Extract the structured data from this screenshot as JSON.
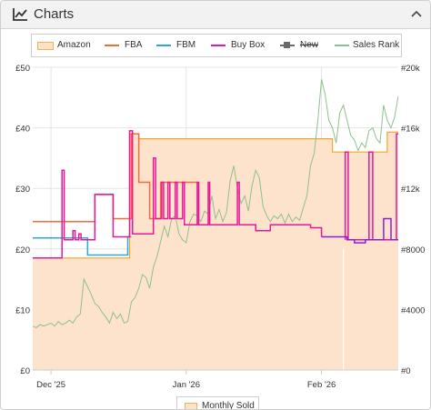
{
  "header": {
    "title": "Charts"
  },
  "colors": {
    "amazon_fill": "#fde3cb",
    "amazon_line": "#f5a623",
    "fba": "#f26b38",
    "fbm": "#29a8e0",
    "buybox": "#e6189c",
    "new": "#6b6b6b",
    "sales_rank": "#8fc08f",
    "buybox_purple": "#8b1fd6"
  },
  "legend": [
    {
      "label": "Amazon",
      "icon": "amazon-swatch"
    },
    {
      "label": "FBA",
      "icon": "fba-line"
    },
    {
      "label": "FBM",
      "icon": "fbm-line"
    },
    {
      "label": "Buy Box",
      "icon": "buybox-line"
    },
    {
      "label": "New",
      "icon": "new-line-disabled"
    },
    {
      "label": "Sales Rank",
      "icon": "salesrank-line"
    }
  ],
  "bottom_legend": {
    "label": "Monthly Sold"
  },
  "chart_data": {
    "type": "line",
    "y_left": {
      "ticks": [
        "£0",
        "£10",
        "£20",
        "£30",
        "£40",
        "£50"
      ],
      "values": [
        0,
        10,
        20,
        30,
        40,
        50
      ],
      "range": [
        0,
        50
      ]
    },
    "y_right": {
      "ticks": [
        "#0",
        "#4000",
        "#8000",
        "#12k",
        "#16k",
        "#20k"
      ],
      "values": [
        0,
        4000,
        8000,
        12000,
        16000,
        20000
      ],
      "range": [
        0,
        20000
      ]
    },
    "x": {
      "range": [
        0,
        100
      ],
      "ticks": [
        {
          "label": "Dec '25",
          "pos": 5
        },
        {
          "label": "Jan '26",
          "pos": 42
        },
        {
          "label": "Feb '26",
          "pos": 79
        }
      ]
    },
    "grid": true,
    "series": [
      {
        "name": "Amazon",
        "type": "area",
        "points": [
          [
            0,
            18.5
          ],
          [
            26.5,
            18.5
          ],
          [
            26.5,
            39
          ],
          [
            29,
            39
          ],
          [
            29,
            38.2
          ],
          [
            82,
            38.2
          ],
          [
            82,
            36
          ],
          [
            97,
            36
          ],
          [
            97,
            39.3
          ],
          [
            107,
            39.3
          ]
        ]
      },
      {
        "name": "FBA",
        "points": [
          [
            0,
            24.5
          ],
          [
            17,
            24.5
          ],
          [
            17,
            29
          ],
          [
            22,
            29
          ],
          [
            22,
            25
          ],
          [
            27,
            25
          ],
          [
            27,
            39
          ],
          [
            29,
            39
          ],
          [
            29,
            31
          ],
          [
            32,
            31
          ],
          [
            32,
            25
          ],
          [
            35,
            25
          ],
          [
            35,
            31
          ],
          [
            45,
            31
          ]
        ]
      },
      {
        "name": "FBM",
        "points": [
          [
            0,
            21.8
          ],
          [
            15,
            21.8
          ],
          [
            15,
            19
          ],
          [
            26,
            19
          ],
          [
            26,
            22
          ],
          [
            27,
            22
          ]
        ]
      },
      {
        "name": "Buy Box",
        "points": [
          [
            0,
            18.5
          ],
          [
            8,
            18.5
          ],
          [
            8,
            33
          ],
          [
            8.6,
            33
          ],
          [
            8.6,
            21.5
          ],
          [
            11,
            21.5
          ],
          [
            11,
            23
          ],
          [
            11.6,
            23
          ],
          [
            11.6,
            21.5
          ],
          [
            12.6,
            21.5
          ],
          [
            12.6,
            22.5
          ],
          [
            13.2,
            22.5
          ],
          [
            13.2,
            21.5
          ],
          [
            17,
            21.5
          ],
          [
            17,
            29
          ],
          [
            22,
            29
          ],
          [
            22,
            22
          ],
          [
            26.5,
            22
          ],
          [
            26.5,
            39.5
          ],
          [
            27.3,
            39.5
          ],
          [
            27.3,
            22.5
          ],
          [
            33,
            22.5
          ],
          [
            33,
            35
          ],
          [
            33.6,
            35
          ],
          [
            33.6,
            25
          ],
          [
            35.3,
            25
          ],
          [
            35.3,
            31
          ],
          [
            35.8,
            31
          ],
          [
            35.8,
            25
          ],
          [
            37,
            25
          ],
          [
            37,
            31
          ],
          [
            37.5,
            31
          ],
          [
            37.5,
            25
          ],
          [
            39,
            25
          ],
          [
            39,
            31
          ],
          [
            39.5,
            31
          ],
          [
            39.5,
            25
          ],
          [
            41,
            25
          ],
          [
            41,
            31
          ],
          [
            41.5,
            31
          ],
          [
            41.5,
            24
          ],
          [
            45,
            24
          ],
          [
            45,
            31
          ],
          [
            45.4,
            31
          ],
          [
            45.4,
            24
          ],
          [
            48,
            24
          ],
          [
            48,
            31
          ],
          [
            48.4,
            31
          ],
          [
            48.4,
            24
          ],
          [
            56,
            24
          ],
          [
            56,
            31
          ],
          [
            56.5,
            31
          ],
          [
            56.5,
            24
          ],
          [
            61,
            24
          ],
          [
            61,
            23
          ],
          [
            65,
            23
          ],
          [
            65,
            24
          ],
          [
            76,
            24
          ],
          [
            76,
            23.5
          ],
          [
            79,
            23.5
          ],
          [
            79,
            22
          ]
        ]
      },
      {
        "name": "Buy Box (purple)",
        "color_key": "buybox_purple",
        "points": [
          [
            79,
            22
          ],
          [
            86,
            22
          ],
          [
            86,
            21.5
          ],
          [
            88,
            21.5
          ],
          [
            88,
            21
          ],
          [
            91,
            21
          ],
          [
            91,
            21.5
          ],
          [
            96,
            21.5
          ],
          [
            96,
            25
          ],
          [
            98,
            25
          ],
          [
            98,
            21.5
          ],
          [
            107,
            21.5
          ]
        ]
      },
      {
        "name": "Buy Box (spikes)",
        "points": [
          [
            85.5,
            21.5
          ],
          [
            85.5,
            36
          ],
          [
            86.3,
            36
          ],
          [
            86.3,
            21.5
          ],
          [
            92,
            21.5
          ],
          [
            92,
            36
          ],
          [
            93,
            36
          ],
          [
            93,
            21.5
          ],
          [
            99.5,
            21.5
          ],
          [
            99.5,
            39
          ],
          [
            100.3,
            39
          ],
          [
            100.3,
            21.5
          ]
        ]
      },
      {
        "name": "Sales Rank",
        "axis": "right",
        "points": [
          [
            0,
            2900
          ],
          [
            1,
            2800
          ],
          [
            2,
            3000
          ],
          [
            3,
            2900
          ],
          [
            4,
            3000
          ],
          [
            5,
            3100
          ],
          [
            6,
            2900
          ],
          [
            7,
            3200
          ],
          [
            8,
            3000
          ],
          [
            9,
            3100
          ],
          [
            10,
            3300
          ],
          [
            11,
            3100
          ],
          [
            12,
            3500
          ],
          [
            13,
            3700
          ],
          [
            14,
            6000
          ],
          [
            15,
            5500
          ],
          [
            16,
            5000
          ],
          [
            17,
            4400
          ],
          [
            18,
            4200
          ],
          [
            19,
            3800
          ],
          [
            20,
            3500
          ],
          [
            21,
            3100
          ],
          [
            22,
            3800
          ],
          [
            23,
            3400
          ],
          [
            24,
            3700
          ],
          [
            25,
            3100
          ],
          [
            26,
            3200
          ],
          [
            27,
            4500
          ],
          [
            28,
            4800
          ],
          [
            29,
            5400
          ],
          [
            30,
            6300
          ],
          [
            31,
            6100
          ],
          [
            32,
            5400
          ],
          [
            33,
            6800
          ],
          [
            34,
            7500
          ],
          [
            35,
            8500
          ],
          [
            36,
            9500
          ],
          [
            37,
            8800
          ],
          [
            38,
            10000
          ],
          [
            39,
            10200
          ],
          [
            40,
            9000
          ],
          [
            41,
            8600
          ],
          [
            42,
            8400
          ],
          [
            43,
            9800
          ],
          [
            44,
            10300
          ],
          [
            45,
            10200
          ],
          [
            46,
            9800
          ],
          [
            47,
            10500
          ],
          [
            48,
            10300
          ],
          [
            49,
            11500
          ],
          [
            50,
            10000
          ],
          [
            51,
            10600
          ],
          [
            52,
            9800
          ],
          [
            53,
            10400
          ],
          [
            54,
            12500
          ],
          [
            55,
            13500
          ],
          [
            56,
            12000
          ],
          [
            57,
            11000
          ],
          [
            58,
            11500
          ],
          [
            59,
            10500
          ],
          [
            60,
            12200
          ],
          [
            61,
            13200
          ],
          [
            62,
            12700
          ],
          [
            63,
            10800
          ],
          [
            64,
            10200
          ],
          [
            65,
            9800
          ],
          [
            66,
            10200
          ],
          [
            67,
            10000
          ],
          [
            68,
            10300
          ],
          [
            69,
            9700
          ],
          [
            70,
            10300
          ],
          [
            71,
            9800
          ],
          [
            72,
            10100
          ],
          [
            73,
            9900
          ],
          [
            74,
            10700
          ],
          [
            75,
            11500
          ],
          [
            76,
            13500
          ],
          [
            77,
            14300
          ],
          [
            78,
            16500
          ],
          [
            79,
            19200
          ],
          [
            80,
            18200
          ],
          [
            81,
            16500
          ],
          [
            82,
            16000
          ],
          [
            83,
            15000
          ],
          [
            84,
            17000
          ],
          [
            85,
            17500
          ],
          [
            86,
            16500
          ],
          [
            87,
            15500
          ],
          [
            88,
            15200
          ],
          [
            89,
            14500
          ],
          [
            90,
            15000
          ],
          [
            91,
            14700
          ],
          [
            92,
            15800
          ],
          [
            93,
            16000
          ],
          [
            94,
            15300
          ],
          [
            95,
            15000
          ],
          [
            96,
            17500
          ],
          [
            97,
            16500
          ],
          [
            98,
            16000
          ],
          [
            99,
            16700
          ],
          [
            100,
            18100
          ],
          [
            101,
            17200
          ],
          [
            102,
            17700
          ],
          [
            103,
            16600
          ],
          [
            104,
            16100
          ],
          [
            105,
            16000
          ],
          [
            106,
            15600
          ]
        ]
      }
    ]
  }
}
